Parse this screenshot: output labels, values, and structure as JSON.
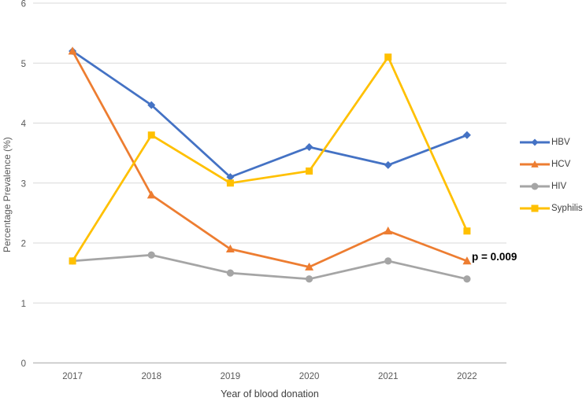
{
  "figure": {
    "background": "#ffffff"
  },
  "chart_data": {
    "type": "line",
    "title": "",
    "xlabel": "Year of blood donation",
    "ylabel": "Percentage Prevalence (%)",
    "categories": [
      "2017",
      "2018",
      "2019",
      "2020",
      "2021",
      "2022"
    ],
    "y_ticks": [
      0,
      1,
      2,
      3,
      4,
      5,
      6
    ],
    "ylim": [
      0,
      6
    ],
    "grid": "horizontal",
    "legend_position": "right",
    "series": [
      {
        "name": "HBV",
        "color": "#4472C4",
        "marker": "diamond",
        "values": [
          5.2,
          4.3,
          3.1,
          3.6,
          3.3,
          3.8
        ]
      },
      {
        "name": "HCV",
        "color": "#ED7D31",
        "marker": "triangle",
        "values": [
          5.2,
          2.8,
          1.9,
          1.6,
          2.2,
          1.7
        ]
      },
      {
        "name": "HIV",
        "color": "#A5A5A5",
        "marker": "circle",
        "values": [
          1.7,
          1.8,
          1.5,
          1.4,
          1.7,
          1.4
        ]
      },
      {
        "name": "Syphilis",
        "color": "#FFC000",
        "marker": "square",
        "values": [
          1.7,
          3.8,
          3.0,
          3.2,
          5.1,
          2.2
        ]
      }
    ],
    "annotation": {
      "text": "p = 0.009"
    },
    "colors": {
      "gridline": "#D9D9D9",
      "axis_line": "#BFBFBF",
      "tick_label": "#595959",
      "axis_title": "#404040",
      "annotation": "#000000"
    }
  }
}
